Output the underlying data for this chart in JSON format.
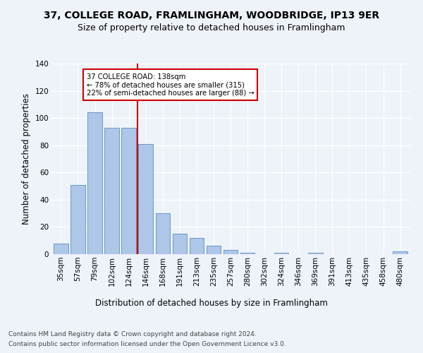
{
  "title1": "37, COLLEGE ROAD, FRAMLINGHAM, WOODBRIDGE, IP13 9ER",
  "title2": "Size of property relative to detached houses in Framlingham",
  "xlabel": "Distribution of detached houses by size in Framlingham",
  "ylabel": "Number of detached properties",
  "categories": [
    "35sqm",
    "57sqm",
    "79sqm",
    "102sqm",
    "124sqm",
    "146sqm",
    "168sqm",
    "191sqm",
    "213sqm",
    "235sqm",
    "257sqm",
    "280sqm",
    "302sqm",
    "324sqm",
    "346sqm",
    "369sqm",
    "391sqm",
    "413sqm",
    "435sqm",
    "458sqm",
    "480sqm"
  ],
  "values": [
    8,
    51,
    104,
    93,
    93,
    81,
    30,
    15,
    12,
    6,
    3,
    1,
    0,
    1,
    0,
    1,
    0,
    0,
    0,
    0,
    2
  ],
  "bar_color": "#aec6e8",
  "bar_edgecolor": "#5a8fc2",
  "vline_x": 4.5,
  "vline_color": "#cc0000",
  "ylim": [
    0,
    140
  ],
  "yticks": [
    0,
    20,
    40,
    60,
    80,
    100,
    120,
    140
  ],
  "annotation_text": "37 COLLEGE ROAD: 138sqm\n← 78% of detached houses are smaller (315)\n22% of semi-detached houses are larger (88) →",
  "annotation_box_color": "#cc0000",
  "footer1": "Contains HM Land Registry data © Crown copyright and database right 2024.",
  "footer2": "Contains public sector information licensed under the Open Government Licence v3.0.",
  "background_color": "#eef2f9",
  "grid_color": "#ffffff",
  "title_fontsize": 10,
  "subtitle_fontsize": 9,
  "axis_label_fontsize": 8.5,
  "tick_fontsize": 7.5,
  "footer_fontsize": 6.5
}
